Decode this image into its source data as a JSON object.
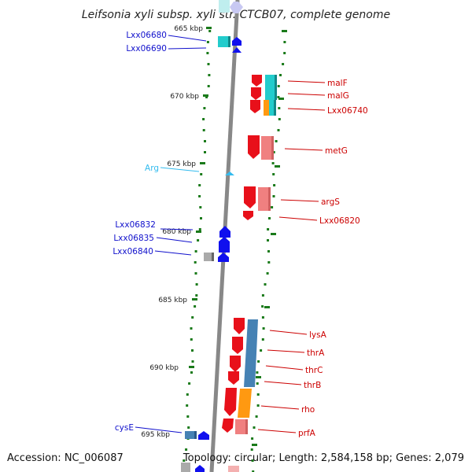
{
  "title": "Leifsonia xyli subsp. xyli str. CTCB07, complete genome",
  "footer": {
    "accession": "Accession: NC_006087",
    "summary": "Topology: circular; Length: 2,584,158 bp; Genes: 2,079"
  },
  "colors": {
    "backbone": "#888888",
    "gc_marks": "#1a7a1a",
    "cds_forward": "#e8101a",
    "cds_reverse": "#1010ee",
    "trna": "#33bbee",
    "cyan_feature": "#22cccc",
    "salmon_feature": "#f08080",
    "orange_feature": "#ff9911",
    "steelblue_feature": "#4682b4",
    "gray_feature": "#aaaaaa",
    "left_label": "#1010cc",
    "right_label": "#cc0000",
    "trna_label": "#33bbee"
  },
  "ticks": [
    "665 kbp",
    "670 kbp",
    "675 kbp",
    "680 kbp",
    "685 kbp",
    "690 kbp",
    "695 kbp"
  ],
  "left_genes": [
    "Lxx06680",
    "Lxx06690",
    "Arg",
    "Lxx06832",
    "Lxx06835",
    "Lxx06840",
    "cysE"
  ],
  "right_genes": [
    "malF",
    "malG",
    "Lxx06740",
    "metG",
    "argS",
    "Lxx06820",
    "lysA",
    "thrA",
    "thrC",
    "thrB",
    "rho",
    "prfA"
  ]
}
